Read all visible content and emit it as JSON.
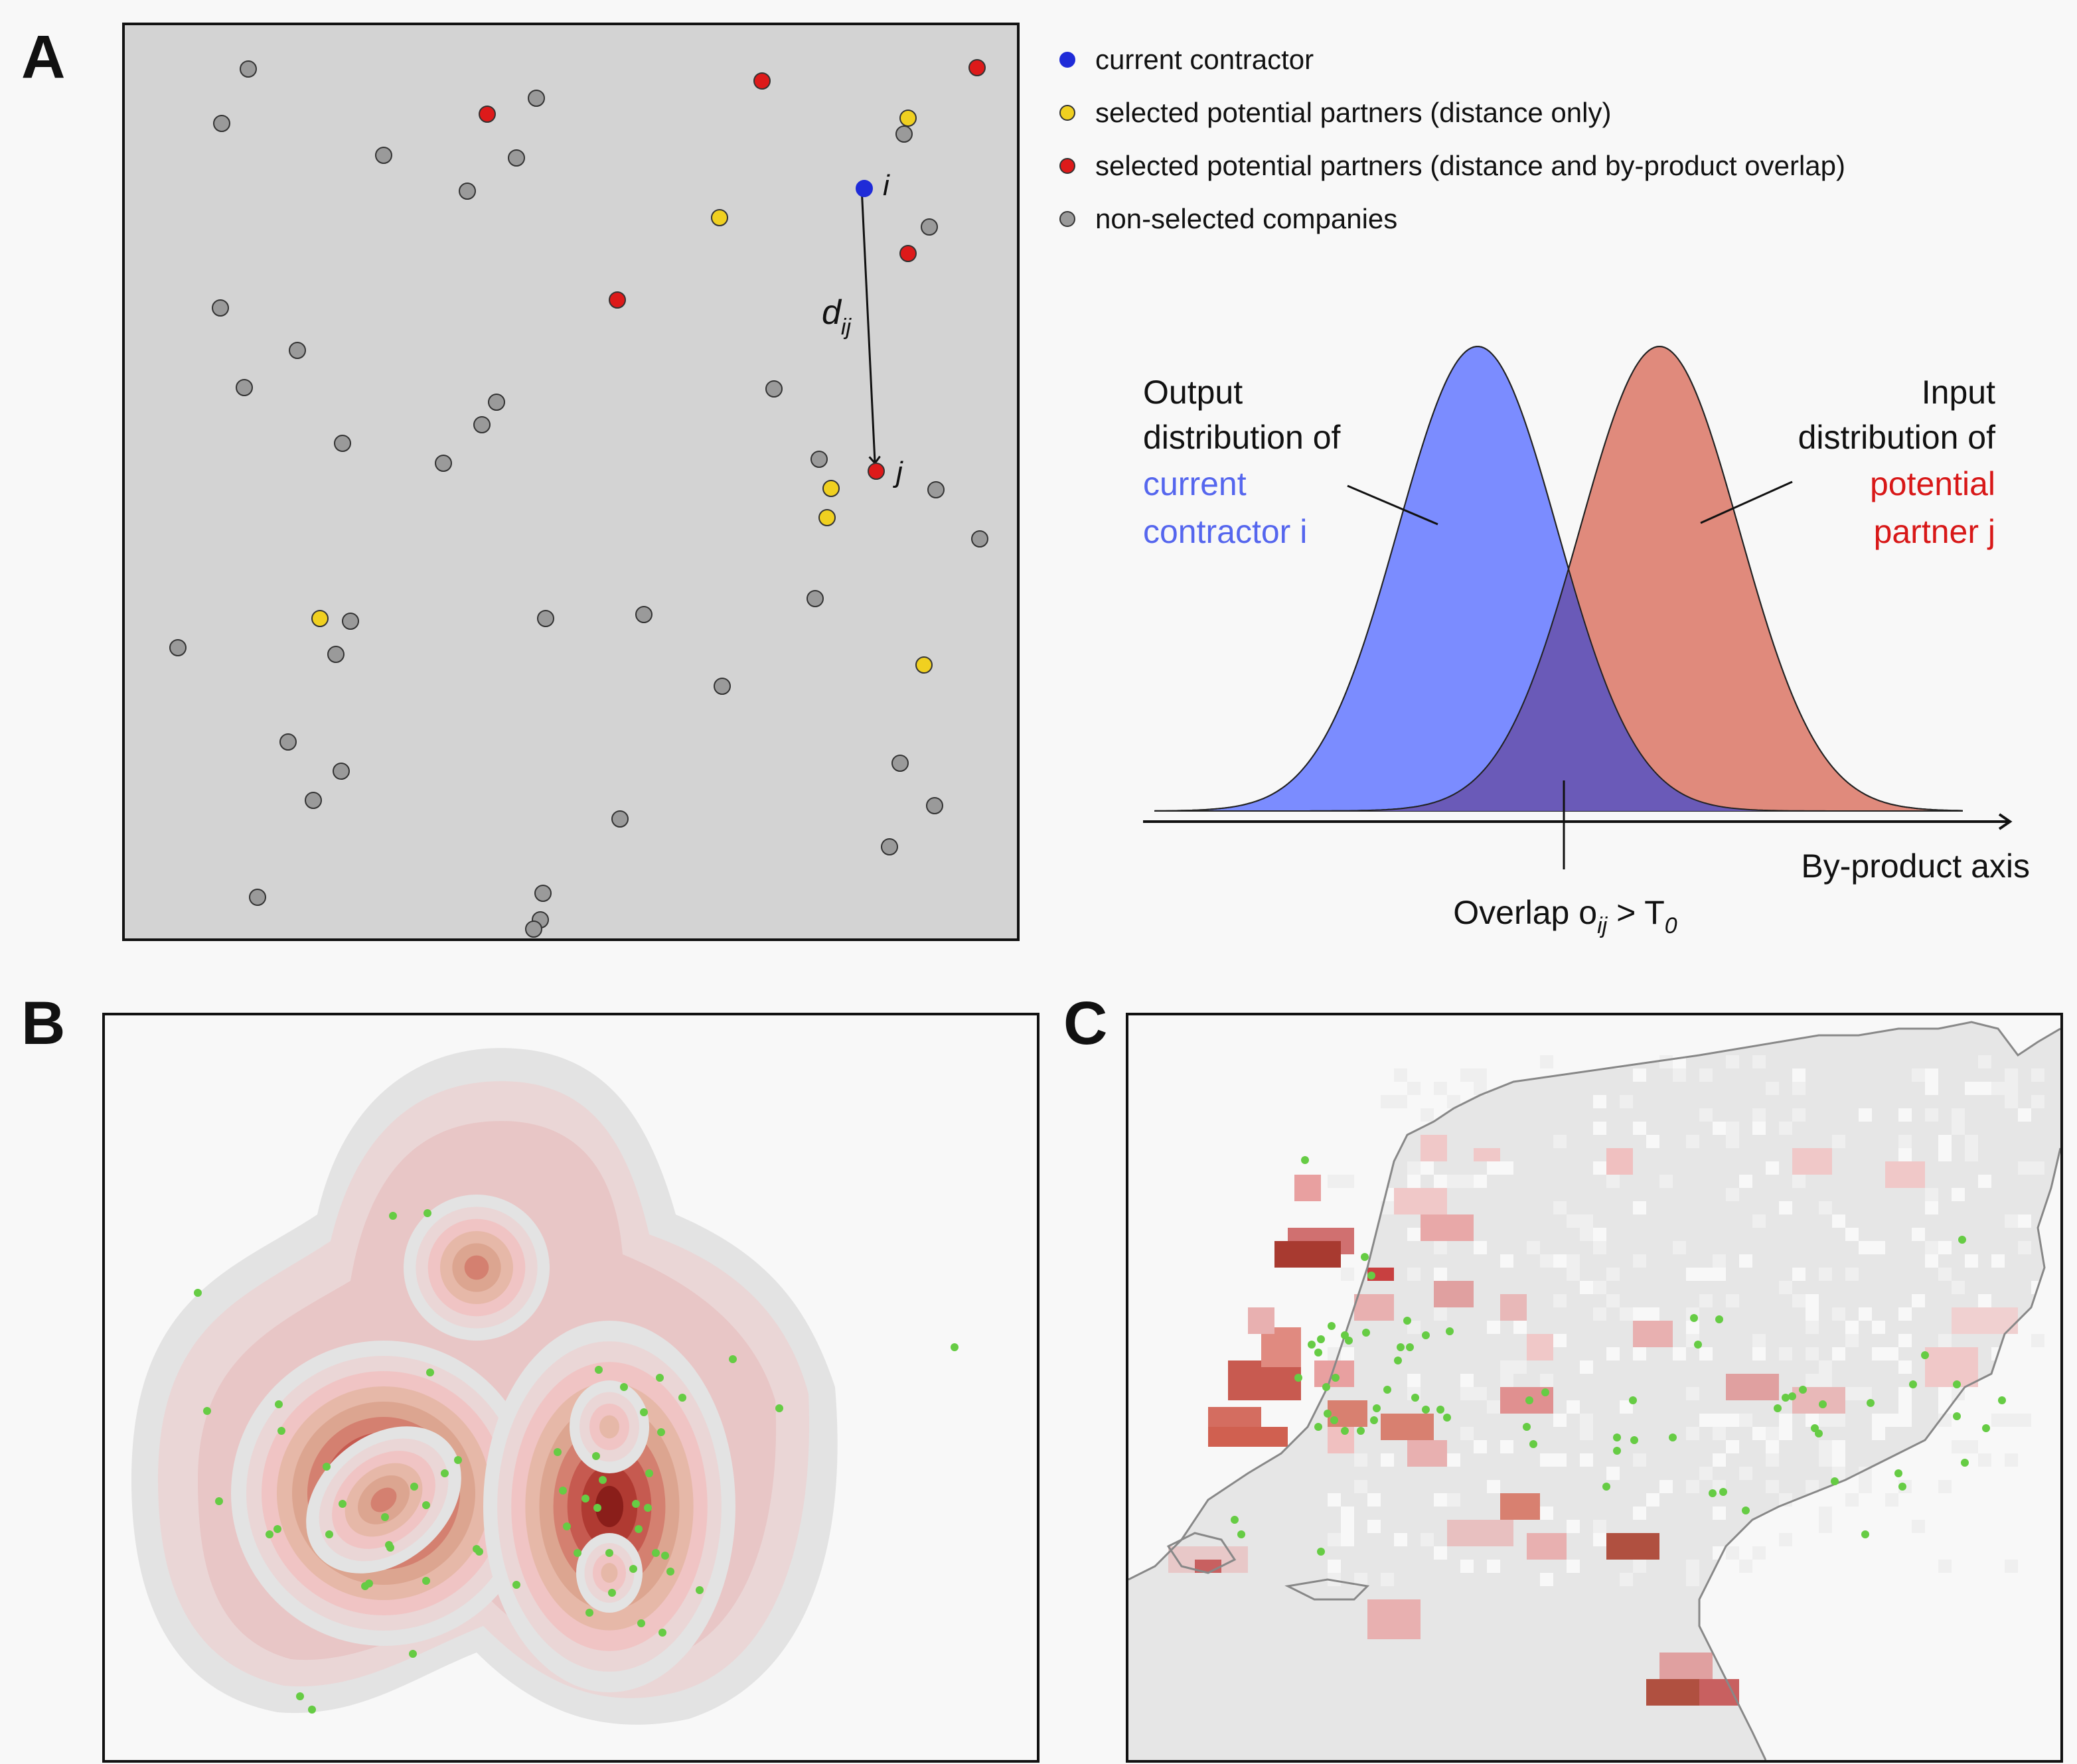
{
  "panels": {
    "a_label": "A",
    "b_label": "B",
    "c_label": "C"
  },
  "legend": [
    {
      "label": "current contractor",
      "color": "#1f2bd8"
    },
    {
      "label": "selected potential partners (distance only)",
      "color": "#f0d020"
    },
    {
      "label": "selected potential partners (distance and by-product overlap)",
      "color": "#dd1a1a"
    },
    {
      "label": "non-selected companies",
      "color": "#9a9a9a"
    }
  ],
  "network": {
    "node_i_label": "i",
    "node_j_label": "j",
    "distance_label_main": "d",
    "distance_label_sub": "ij"
  },
  "distribution": {
    "output_label_line1": "Output",
    "output_label_line2": "distribution of",
    "output_label_line3": "current",
    "output_label_line4": "contractor i",
    "input_label_line1": "Input",
    "input_label_line2": "distribution of",
    "input_label_line3": "potential",
    "input_label_line4": "partner j",
    "axis_label": "By-product axis",
    "overlap_label_main": "Overlap o",
    "overlap_label_sub1": "ij",
    "overlap_label_mid": " > T",
    "overlap_label_sub2": "0",
    "output_color": "#7b8cff",
    "input_color": "#e08a7c",
    "overlap_color": "#6a5ab8"
  },
  "colors": {
    "current": "#1f2bd8",
    "distance_only": "#f0d020",
    "distance_overlap": "#dd1a1a",
    "non_selected": "#9a9a9a",
    "points_green": "#66cc44"
  }
}
